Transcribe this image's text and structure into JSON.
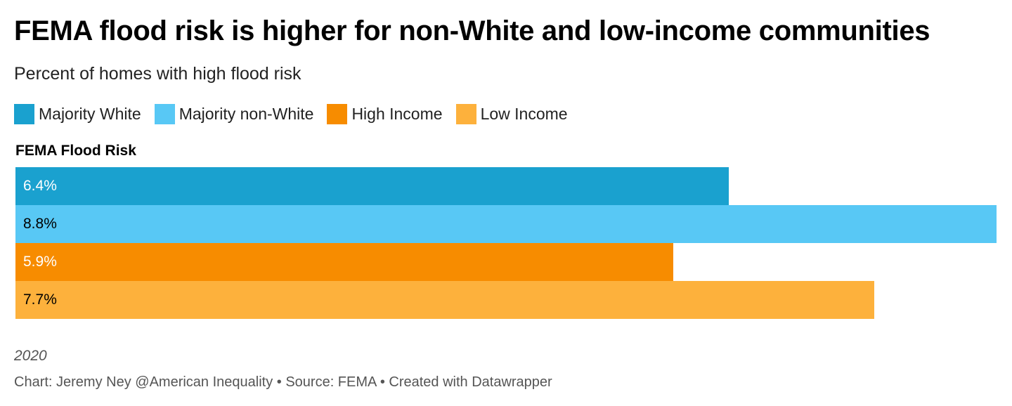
{
  "chart_data": {
    "type": "bar",
    "orientation": "horizontal",
    "title": "FEMA flood risk is higher for non-White and low-income communities",
    "subtitle": "Percent of homes with high flood risk",
    "legend_placement": "top-left",
    "categories": [
      "FEMA Flood Risk"
    ],
    "series": [
      {
        "name": "Majority White",
        "color": "#1aa1cf",
        "label_color": "#ffffff",
        "values": [
          6.4
        ],
        "label": "6.4%"
      },
      {
        "name": "Majority non-White",
        "color": "#58c8f5",
        "label_color": "#000000",
        "values": [
          8.8
        ],
        "label": "8.8%"
      },
      {
        "name": "High Income",
        "color": "#f78c00",
        "label_color": "#ffffff",
        "values": [
          5.9
        ],
        "label": "5.9%"
      },
      {
        "name": "Low Income",
        "color": "#fdb13c",
        "label_color": "#000000",
        "values": [
          7.7
        ],
        "label": "7.7%"
      }
    ],
    "xlim": [
      0,
      8.8
    ],
    "grid": false
  },
  "notes": {
    "year": "2020",
    "footer": "Chart: Jeremy Ney @American Inequality • Source: FEMA • Created with Datawrapper"
  }
}
